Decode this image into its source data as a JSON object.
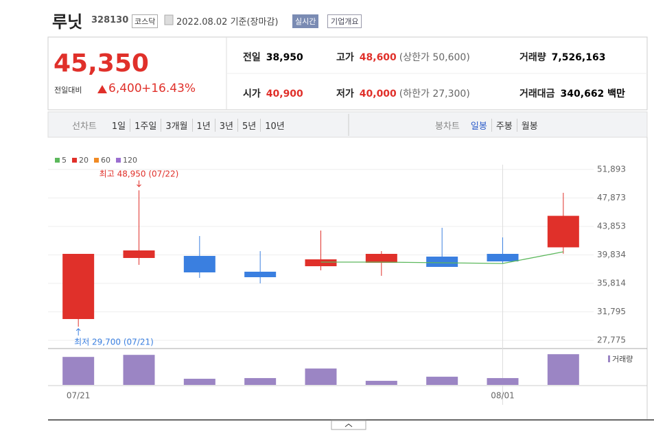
{
  "header": {
    "name": "루닛",
    "code": "328130",
    "market": "코스닥",
    "date": "2022.08.02 기준(장마감)",
    "realtime": "실시간",
    "overview": "기업개요"
  },
  "price": {
    "current": "45,350",
    "change_label": "전일대비",
    "change": "6,400",
    "rate": "+16.43%"
  },
  "summary": {
    "rows": [
      [
        {
          "label": "전일",
          "value": "38,950"
        },
        {
          "label": "고가",
          "value": "48,600",
          "limit": "(상한가 50,600)"
        },
        {
          "label": "거래량",
          "value": "7,526,163"
        }
      ],
      [
        {
          "label": "시가",
          "value": "40,900"
        },
        {
          "label": "저가",
          "value": "40,000",
          "limit": "(하한가 27,300)"
        },
        {
          "label": "거래대금",
          "value": "340,662 백만"
        }
      ]
    ]
  },
  "tabs": {
    "line_label": "선차트",
    "line": [
      "1일",
      "1주일",
      "3개월",
      "1년",
      "3년",
      "5년",
      "10년"
    ],
    "candle_label": "봉차트",
    "candle": [
      "일봉",
      "주봉",
      "월봉"
    ]
  },
  "chart_data": {
    "type": "candlestick",
    "categories": [
      "07/21",
      null,
      null,
      null,
      null,
      null,
      null,
      "08/01",
      null
    ],
    "open": [
      30778,
      39398,
      39689,
      37461,
      38236,
      38720,
      39592,
      39979,
      40900
    ],
    "high": [
      39979,
      48950,
      42498,
      40367,
      43273,
      40367,
      43660,
      42304,
      48600
    ],
    "low": [
      29700,
      38430,
      36589,
      35814,
      37655,
      36880,
      38139,
      38623,
      40000
    ],
    "close": [
      39979,
      40464,
      37364,
      36686,
      39204,
      39979,
      38139,
      38914,
      45350
    ],
    "up_color": "#e0302a",
    "down_color": "#3a7fe0",
    "series": [
      {
        "name": "5",
        "color": "#5cb85c",
        "values": [
          null,
          null,
          null,
          null,
          38817,
          38817,
          38720,
          38623,
          40270
        ]
      },
      {
        "name": "20",
        "color": "#e0302a",
        "values": [
          null,
          null,
          null,
          null,
          null,
          null,
          null,
          null,
          null
        ]
      },
      {
        "name": "60",
        "color": "#f08a24",
        "values": [
          null,
          null,
          null,
          null,
          null,
          null,
          null,
          null,
          null
        ]
      },
      {
        "name": "120",
        "color": "#9b6fd0",
        "values": [
          null,
          null,
          null,
          null,
          null,
          null,
          null,
          null,
          null
        ]
      }
    ],
    "ylim": [
      27775,
      51893
    ],
    "yticks": [
      {
        "value": 27775,
        "label": "27,775"
      },
      {
        "value": 31795,
        "label": "31,795"
      },
      {
        "value": 35814,
        "label": "35,814"
      },
      {
        "value": 39834,
        "label": "39,834"
      },
      {
        "value": 43853,
        "label": "43,853"
      },
      {
        "value": 47873,
        "label": "47,873"
      },
      {
        "value": 51893,
        "label": "51,893"
      }
    ],
    "grid": true,
    "annotations": [
      {
        "text": "최고 48,950 (07/22)",
        "color": "#e0302a"
      },
      {
        "text": "최저 29,700 (07/21)",
        "color": "#3a7fe0"
      }
    ],
    "volume": {
      "name": "거래량",
      "color": "#9b85c4",
      "values": [
        6857000,
        7359000,
        1505000,
        1672000,
        4014000,
        1003000,
        2007000,
        1672000,
        7526163
      ],
      "ylim": [
        0,
        8400000
      ]
    }
  }
}
